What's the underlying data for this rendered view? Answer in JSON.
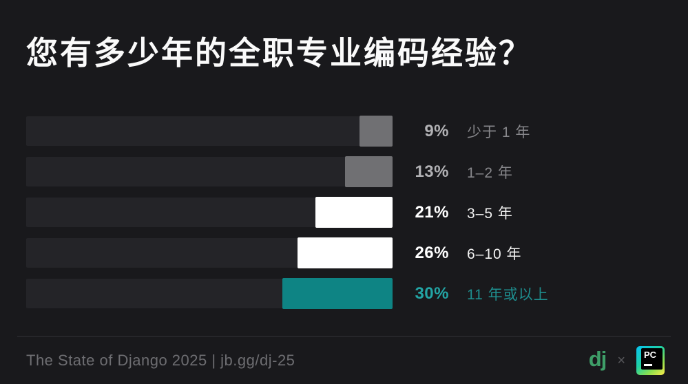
{
  "page": {
    "title": "您有多少年的全职专业编码经验？"
  },
  "chart_data": {
    "type": "bar",
    "orientation": "horizontal",
    "bar_alignment": "right",
    "title": "您有多少年的全职专业编码经验？",
    "categories": [
      "少于 1 年",
      "1–2 年",
      "3–5 年",
      "6–10 年",
      "11 年或以上"
    ],
    "values": [
      9,
      13,
      21,
      26,
      30
    ],
    "value_labels": [
      "9%",
      "13%",
      "21%",
      "26%",
      "30%"
    ],
    "xlim": [
      0,
      100
    ],
    "grid": false,
    "legend": false,
    "emphasis": [
      "muted",
      "muted",
      "normal",
      "normal",
      "highlight"
    ],
    "bar_colors": {
      "muted": "#707073",
      "normal": "#ffffff",
      "highlight": "#0e8484"
    },
    "text_colors": {
      "muted_value": "#b2b2b5",
      "muted_label": "#88888c",
      "normal_value": "#ffffff",
      "normal_label": "#f2f2f2",
      "highlight_value": "#23a5a5",
      "highlight_label": "#1e8f8f"
    }
  },
  "footer": {
    "source": "The State of Django 2025 | jb.gg/dj-25",
    "django_logo": "dj",
    "multiply_sign": "×",
    "pycharm_logo": "PC"
  },
  "theme": {
    "background": "#19191c",
    "track": "#242428",
    "title_color": "#fafafa",
    "divider": "#323236",
    "footer_text": "#6d6d71",
    "django_green": "#3e9e68",
    "highlight_teal": "#0e8484"
  }
}
